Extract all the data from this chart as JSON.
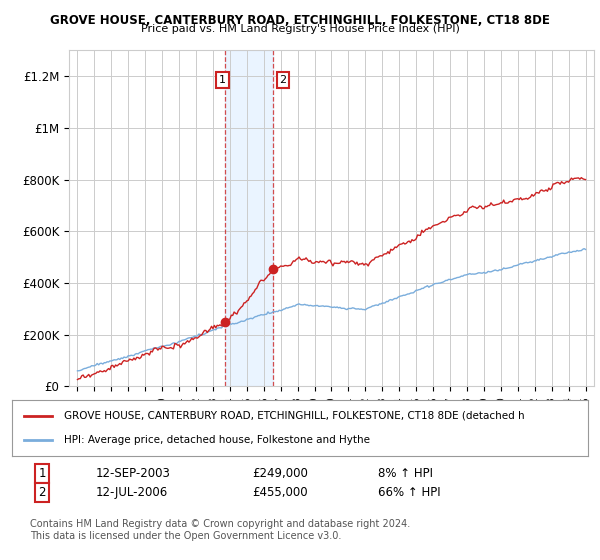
{
  "title1": "GROVE HOUSE, CANTERBURY ROAD, ETCHINGHILL, FOLKESTONE, CT18 8DE",
  "title2": "Price paid vs. HM Land Registry's House Price Index (HPI)",
  "ylim": [
    0,
    1300000
  ],
  "yticks": [
    0,
    200000,
    400000,
    600000,
    800000,
    1000000,
    1200000
  ],
  "ytick_labels": [
    "£0",
    "£200K",
    "£400K",
    "£600K",
    "£800K",
    "£1M",
    "£1.2M"
  ],
  "sale1_date": "12-SEP-2003",
  "sale1_price": 249000,
  "sale1_year": 2003.708,
  "sale1_pct": "8%",
  "sale2_date": "12-JUL-2006",
  "sale2_price": 455000,
  "sale2_year": 2006.542,
  "sale2_pct": "66%",
  "hpi_line_color": "#7aaddc",
  "price_line_color": "#cc2222",
  "sale_marker_color": "#cc2222",
  "highlight_color": "#ddeeff",
  "highlight_alpha": 0.6,
  "grid_color": "#cccccc",
  "legend1_text": "GROVE HOUSE, CANTERBURY ROAD, ETCHINGHILL, FOLKESTONE, CT18 8DE (detached h",
  "legend2_text": "HPI: Average price, detached house, Folkestone and Hythe",
  "footer1": "Contains HM Land Registry data © Crown copyright and database right 2024.",
  "footer2": "This data is licensed under the Open Government Licence v3.0.",
  "background_color": "#ffffff"
}
